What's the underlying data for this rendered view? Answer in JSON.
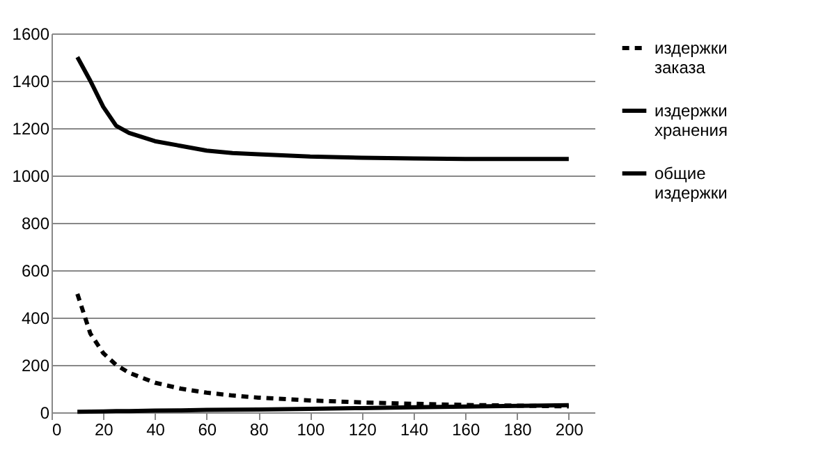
{
  "chart_data": {
    "type": "line",
    "x": [
      10,
      15,
      20,
      25,
      30,
      40,
      50,
      60,
      70,
      80,
      100,
      120,
      140,
      160,
      180,
      200
    ],
    "series": [
      {
        "name": "издержки заказа",
        "color": "#000000",
        "line_style": "dashed",
        "values": [
          500,
          333,
          250,
          200,
          167,
          125,
          100,
          83,
          71,
          62,
          50,
          42,
          36,
          31,
          28,
          25
        ]
      },
      {
        "name": "издержки хранения",
        "color": "#000000",
        "values": [
          2,
          3,
          4,
          5,
          5,
          7,
          8,
          10,
          11,
          12,
          15,
          18,
          21,
          24,
          27,
          30
        ]
      },
      {
        "name": "общие издержки",
        "color": "#000000",
        "values": [
          1500,
          1400,
          1290,
          1210,
          1180,
          1145,
          1125,
          1105,
          1095,
          1090,
          1080,
          1075,
          1072,
          1070,
          1070,
          1070
        ]
      }
    ],
    "xlim": [
      0,
      210
    ],
    "xticks": [
      0,
      20,
      40,
      60,
      80,
      100,
      120,
      140,
      160,
      180,
      200
    ],
    "ylim": [
      0,
      1600
    ],
    "yticks": [
      0,
      200,
      400,
      600,
      800,
      1000,
      1200,
      1400,
      1600
    ],
    "grid": "y",
    "legend": "right",
    "marker": "none"
  }
}
